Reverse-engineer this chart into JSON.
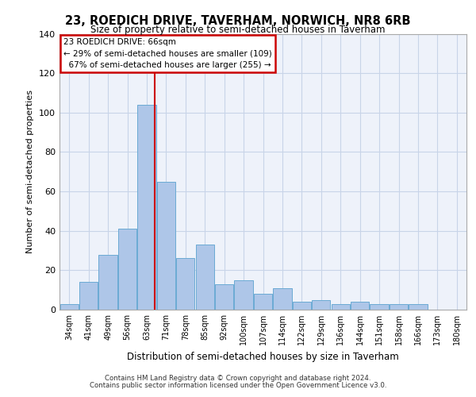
{
  "title": "23, ROEDICH DRIVE, TAVERHAM, NORWICH, NR8 6RB",
  "subtitle": "Size of property relative to semi-detached houses in Taverham",
  "xlabel": "Distribution of semi-detached houses by size in Taverham",
  "ylabel": "Number of semi-detached properties",
  "categories": [
    "34sqm",
    "41sqm",
    "49sqm",
    "56sqm",
    "63sqm",
    "71sqm",
    "78sqm",
    "85sqm",
    "92sqm",
    "100sqm",
    "107sqm",
    "114sqm",
    "122sqm",
    "129sqm",
    "136sqm",
    "144sqm",
    "151sqm",
    "158sqm",
    "166sqm",
    "173sqm",
    "180sqm"
  ],
  "values": [
    3,
    14,
    28,
    41,
    104,
    65,
    26,
    33,
    13,
    15,
    8,
    11,
    4,
    5,
    3,
    4,
    3,
    3,
    3,
    0,
    0
  ],
  "bar_color": "#aec6e8",
  "bar_edge_color": "#6aaad4",
  "grid_color": "#c8d4e8",
  "bg_color": "#eef2fa",
  "property_size": 66,
  "smaller_pct": 29,
  "smaller_count": 109,
  "larger_pct": 67,
  "larger_count": 255,
  "annotation_box_color": "#ffffff",
  "annotation_box_edge": "#cc0000",
  "red_line_color": "#cc0000",
  "ylim": [
    0,
    140
  ],
  "yticks": [
    0,
    20,
    40,
    60,
    80,
    100,
    120,
    140
  ],
  "footer1": "Contains HM Land Registry data © Crown copyright and database right 2024.",
  "footer2": "Contains public sector information licensed under the Open Government Licence v3.0."
}
